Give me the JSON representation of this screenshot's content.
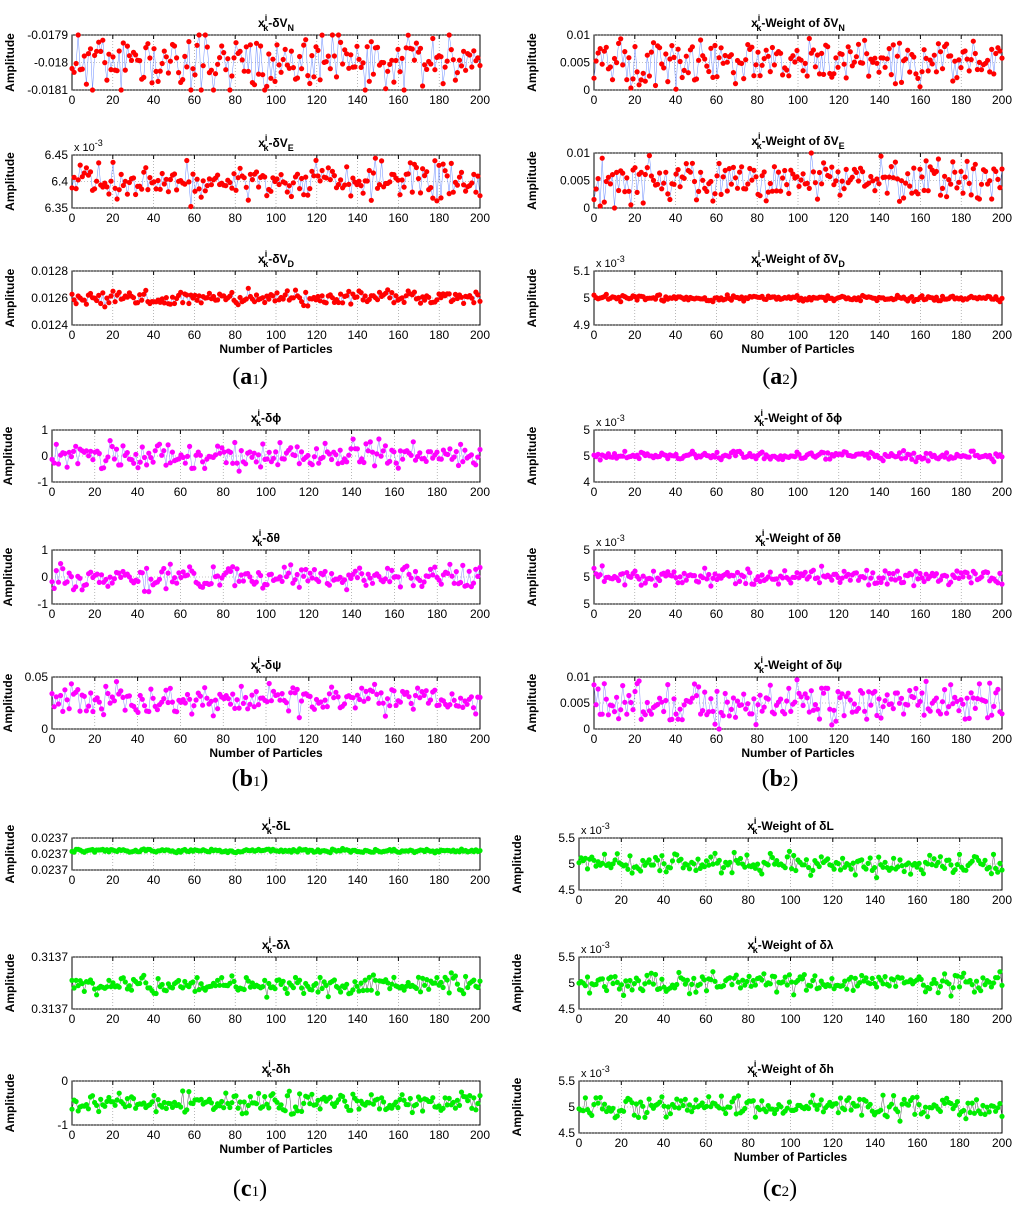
{
  "chart_data": [
    {
      "id": "a1-1",
      "type": "scatter",
      "group": "a1",
      "title_sub": "-δV",
      "title_subsc": "N",
      "ylabel": "Amplitude",
      "xlabel": "",
      "color": "#ff0000",
      "seed": 11,
      "x_ticks": [
        "0",
        "20",
        "40",
        "60",
        "80",
        "100",
        "120",
        "140",
        "160",
        "180",
        "200"
      ],
      "y_ticks": [
        "-0.0179",
        "-0.018",
        "-0.0181"
      ],
      "ylim": [
        -0.0181,
        -0.0179
      ],
      "exponent": "",
      "center": -0.018,
      "spread": 8e-05,
      "n_points": 200
    },
    {
      "id": "a1-2",
      "type": "scatter",
      "group": "a1",
      "title_sub": "-δV",
      "title_subsc": "E",
      "ylabel": "Amplitude",
      "xlabel": "",
      "color": "#ff0000",
      "seed": 12,
      "x_ticks": [
        "0",
        "20",
        "40",
        "60",
        "80",
        "100",
        "120",
        "140",
        "160",
        "180",
        "200"
      ],
      "y_ticks": [
        "6.45",
        "6.4",
        "6.35"
      ],
      "ylim": [
        6.32,
        6.48
      ],
      "exponent": "x 10-3",
      "center": 6.4,
      "spread": 0.04,
      "n_points": 200
    },
    {
      "id": "a1-3",
      "type": "scatter",
      "group": "a1",
      "title_sub": "-δV",
      "title_subsc": "D",
      "ylabel": "Amplitude",
      "xlabel": "Number of Particles",
      "color": "#ff0000",
      "seed": 13,
      "x_ticks": [
        "0",
        "20",
        "40",
        "60",
        "80",
        "100",
        "120",
        "140",
        "160",
        "180",
        "200"
      ],
      "y_ticks": [
        "0.0128",
        "0.0126",
        "0.0124"
      ],
      "ylim": [
        0.0124,
        0.0128
      ],
      "exponent": "",
      "center": 0.0126,
      "spread": 4e-05,
      "n_points": 200
    },
    {
      "id": "a2-1",
      "type": "scatter",
      "group": "a2",
      "title_sub": "-Weight of δV",
      "title_subsc": "N",
      "ylabel": "Amplitude",
      "xlabel": "",
      "color": "#ff0000",
      "seed": 21,
      "x_ticks": [
        "0",
        "20",
        "40",
        "60",
        "80",
        "100",
        "120",
        "140",
        "160",
        "180",
        "200"
      ],
      "y_ticks": [
        "0.01",
        "0.005",
        "0"
      ],
      "ylim": [
        0,
        0.01
      ],
      "exponent": "",
      "center": 0.005,
      "spread": 0.0028,
      "n_points": 200
    },
    {
      "id": "a2-2",
      "type": "scatter",
      "group": "a2",
      "title_sub": "-Weight of δV",
      "title_subsc": "E",
      "ylabel": "Amplitude",
      "xlabel": "",
      "color": "#ff0000",
      "seed": 22,
      "x_ticks": [
        "0",
        "20",
        "40",
        "60",
        "80",
        "100",
        "120",
        "140",
        "160",
        "180",
        "200"
      ],
      "y_ticks": [
        "0.01",
        "0.005",
        "0"
      ],
      "ylim": [
        0,
        0.01
      ],
      "exponent": "",
      "center": 0.005,
      "spread": 0.0028,
      "n_points": 200
    },
    {
      "id": "a2-3",
      "type": "scatter",
      "group": "a2",
      "title_sub": "-Weight of δV",
      "title_subsc": "D",
      "ylabel": "Amplitude",
      "xlabel": "Number of Particles",
      "color": "#ff0000",
      "seed": 23,
      "x_ticks": [
        "0",
        "20",
        "40",
        "60",
        "80",
        "100",
        "120",
        "140",
        "160",
        "180",
        "200"
      ],
      "y_ticks": [
        "5.1",
        "5",
        "4.9"
      ],
      "ylim": [
        4.9,
        5.1
      ],
      "exponent": "x 10-3",
      "center": 5.0,
      "spread": 0.008,
      "n_points": 200
    },
    {
      "id": "b1-1",
      "type": "scatter",
      "group": "b1",
      "title_sub": "-δϕ",
      "title_subsc": "",
      "ylabel": "Amplitude",
      "xlabel": "",
      "color": "#ff00ff",
      "seed": 31,
      "x_ticks": [
        "0",
        "20",
        "40",
        "60",
        "80",
        "100",
        "120",
        "140",
        "160",
        "180",
        "200"
      ],
      "y_ticks": [
        "1",
        "0",
        "-1"
      ],
      "ylim": [
        -1,
        1
      ],
      "exponent": "",
      "center": 0,
      "spread": 0.35,
      "n_points": 200
    },
    {
      "id": "b1-2",
      "type": "scatter",
      "group": "b1",
      "title_sub": "-δθ",
      "title_subsc": "",
      "ylabel": "Amplitude",
      "xlabel": "",
      "color": "#ff00ff",
      "seed": 32,
      "x_ticks": [
        "0",
        "20",
        "40",
        "60",
        "80",
        "100",
        "120",
        "140",
        "160",
        "180",
        "200"
      ],
      "y_ticks": [
        "1",
        "0",
        "-1"
      ],
      "ylim": [
        -1,
        1
      ],
      "exponent": "",
      "center": 0,
      "spread": 0.3,
      "n_points": 200
    },
    {
      "id": "b1-3",
      "type": "scatter",
      "group": "b1",
      "title_sub": "-δψ",
      "title_subsc": "",
      "ylabel": "Amplitude",
      "xlabel": "Number of Particles",
      "color": "#ff00ff",
      "seed": 33,
      "x_ticks": [
        "0",
        "20",
        "40",
        "60",
        "80",
        "100",
        "120",
        "140",
        "160",
        "180",
        "200"
      ],
      "y_ticks": [
        "0.05",
        "0"
      ],
      "ylim": [
        0,
        0.05
      ],
      "exponent": "",
      "center": 0.028,
      "spread": 0.01,
      "n_points": 200
    },
    {
      "id": "b2-1",
      "type": "scatter",
      "group": "b2",
      "title_sub": "-Weight of δϕ",
      "title_subsc": "",
      "ylabel": "Amplitude",
      "xlabel": "",
      "color": "#ff00ff",
      "seed": 41,
      "x_ticks": [
        "0",
        "20",
        "40",
        "60",
        "80",
        "100",
        "120",
        "140",
        "160",
        "180",
        "200"
      ],
      "y_ticks": [
        "5",
        "5",
        "4"
      ],
      "ylim": [
        4,
        6
      ],
      "exponent": "x 10-3",
      "center": 5.0,
      "spread": 0.12,
      "n_points": 200
    },
    {
      "id": "b2-2",
      "type": "scatter",
      "group": "b2",
      "title_sub": "-Weight of δθ",
      "title_subsc": "",
      "ylabel": "Amplitude",
      "xlabel": "",
      "color": "#ff00ff",
      "seed": 42,
      "x_ticks": [
        "0",
        "20",
        "40",
        "60",
        "80",
        "100",
        "120",
        "140",
        "160",
        "180",
        "200"
      ],
      "y_ticks": [
        "5",
        "5",
        "5"
      ],
      "ylim": [
        4,
        6
      ],
      "exponent": "x 10-3",
      "center": 5.0,
      "spread": 0.22,
      "n_points": 200
    },
    {
      "id": "b2-3",
      "type": "scatter",
      "group": "b2",
      "title_sub": "-Weight of δψ",
      "title_subsc": "",
      "ylabel": "Amplitude",
      "xlabel": "Number of Particles",
      "color": "#ff00ff",
      "seed": 43,
      "x_ticks": [
        "0",
        "20",
        "40",
        "60",
        "80",
        "100",
        "120",
        "140",
        "160",
        "180",
        "200"
      ],
      "y_ticks": [
        "0.01",
        "0.005",
        "0"
      ],
      "ylim": [
        0,
        0.01
      ],
      "exponent": "",
      "center": 0.005,
      "spread": 0.0028,
      "n_points": 200
    },
    {
      "id": "c1-1",
      "type": "scatter",
      "group": "c1",
      "title_sub": "-δL",
      "title_subsc": "",
      "ylabel": "Amplitude",
      "xlabel": "",
      "color": "#00ee00",
      "seed": 51,
      "x_ticks": [
        "0",
        "20",
        "40",
        "60",
        "80",
        "100",
        "120",
        "140",
        "160",
        "180",
        "200"
      ],
      "y_ticks": [
        "0.0237",
        "0.0237",
        "0.0237"
      ],
      "ylim": [
        0,
        1
      ],
      "exponent": "",
      "center": 0.6,
      "spread": 0.04,
      "n_points": 200
    },
    {
      "id": "c1-2",
      "type": "scatter",
      "group": "c1",
      "title_sub": "-δλ",
      "title_subsc": "",
      "ylabel": "Amplitude",
      "xlabel": "",
      "color": "#00ee00",
      "seed": 52,
      "x_ticks": [
        "0",
        "20",
        "40",
        "60",
        "80",
        "100",
        "120",
        "140",
        "160",
        "180",
        "200"
      ],
      "y_ticks": [
        "0.3137",
        "0.3137"
      ],
      "ylim": [
        0,
        1
      ],
      "exponent": "",
      "center": 0.45,
      "spread": 0.14,
      "n_points": 200
    },
    {
      "id": "c1-3",
      "type": "scatter",
      "group": "c1",
      "title_sub": "-δh",
      "title_subsc": "",
      "ylabel": "Amplitude",
      "xlabel": "Number of Particles",
      "color": "#00ee00",
      "seed": 53,
      "x_ticks": [
        "0",
        "20",
        "40",
        "60",
        "80",
        "100",
        "120",
        "140",
        "160",
        "180",
        "200"
      ],
      "y_ticks": [
        "0",
        "-1"
      ],
      "ylim": [
        -1,
        0.6
      ],
      "exponent": "",
      "center": -0.2,
      "spread": 0.25,
      "n_points": 200
    },
    {
      "id": "c2-1",
      "type": "scatter",
      "group": "c2",
      "title_sub": "-Weight of δL",
      "title_subsc": "",
      "ylabel": "Amplitude",
      "xlabel": "",
      "color": "#00ee00",
      "seed": 61,
      "x_ticks": [
        "0",
        "20",
        "40",
        "60",
        "80",
        "100",
        "120",
        "140",
        "160",
        "180",
        "200"
      ],
      "y_ticks": [
        "5.5",
        "5",
        "4.5"
      ],
      "ylim": [
        4.5,
        5.5
      ],
      "exponent": "x 10-3",
      "center": 5.0,
      "spread": 0.14,
      "n_points": 200
    },
    {
      "id": "c2-2",
      "type": "scatter",
      "group": "c2",
      "title_sub": "-Weight of δλ",
      "title_subsc": "",
      "ylabel": "Amplitude",
      "xlabel": "",
      "color": "#00ee00",
      "seed": 62,
      "x_ticks": [
        "0",
        "20",
        "40",
        "60",
        "80",
        "100",
        "120",
        "140",
        "160",
        "180",
        "200"
      ],
      "y_ticks": [
        "5.5",
        "5",
        "4.5"
      ],
      "ylim": [
        4.5,
        5.5
      ],
      "exponent": "x 10-3",
      "center": 5.0,
      "spread": 0.13,
      "n_points": 200
    },
    {
      "id": "c2-3",
      "type": "scatter",
      "group": "c2",
      "title_sub": "-Weight of δh",
      "title_subsc": "",
      "ylabel": "Amplitude",
      "xlabel": "Number of Particles",
      "color": "#00ee00",
      "seed": 63,
      "x_ticks": [
        "0",
        "20",
        "40",
        "60",
        "80",
        "100",
        "120",
        "140",
        "160",
        "180",
        "200"
      ],
      "y_ticks": [
        "5.5",
        "5",
        "4.5"
      ],
      "ylim": [
        4.5,
        5.5
      ],
      "exponent": "x 10-3",
      "center": 5.0,
      "spread": 0.14,
      "n_points": 200
    }
  ],
  "captions": {
    "a1": {
      "letter": "a",
      "num": "1"
    },
    "a2": {
      "letter": "a",
      "num": "2"
    },
    "b1": {
      "letter": "b",
      "num": "1"
    },
    "b2": {
      "letter": "b",
      "num": "2"
    },
    "c1": {
      "letter": "c",
      "num": "1"
    },
    "c2": {
      "letter": "c",
      "num": "2"
    }
  },
  "title_prefix": {
    "x": "x",
    "sup": "i",
    "sub": "k"
  }
}
